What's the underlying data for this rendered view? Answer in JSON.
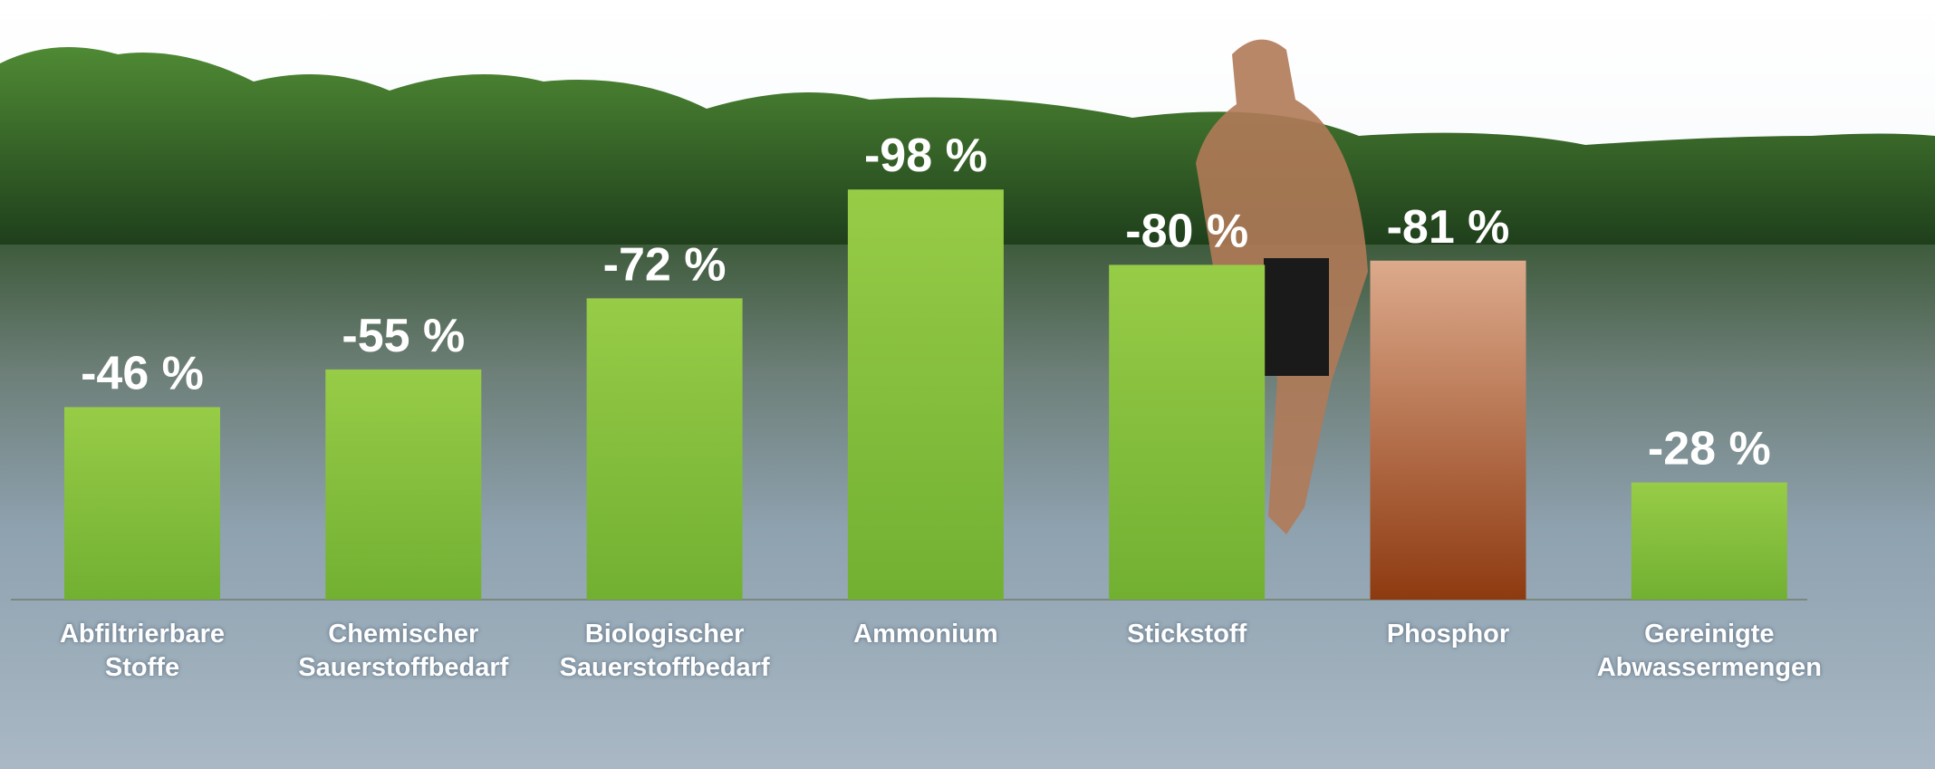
{
  "chart_data": {
    "type": "bar",
    "categories": [
      "Abfiltrierbare Stoffe",
      "Chemischer Sauerstoffbedarf",
      "Biologischer Sauerstoffbedarf",
      "Ammonium",
      "Stickstoff",
      "Phosphor",
      "Gereinigte Abwassermengen"
    ],
    "values": [
      -46,
      -55,
      -72,
      -98,
      -80,
      -81,
      -28
    ],
    "value_labels": [
      "-46 %",
      "-55 %",
      "-72 %",
      "-98 %",
      "-80 %",
      "-81 %",
      "-28 %"
    ],
    "colors": [
      "#8cc43e",
      "#8cc43e",
      "#8cc43e",
      "#8cc43e",
      "#8cc43e",
      "#a0521f",
      "#8cc43e"
    ]
  }
}
